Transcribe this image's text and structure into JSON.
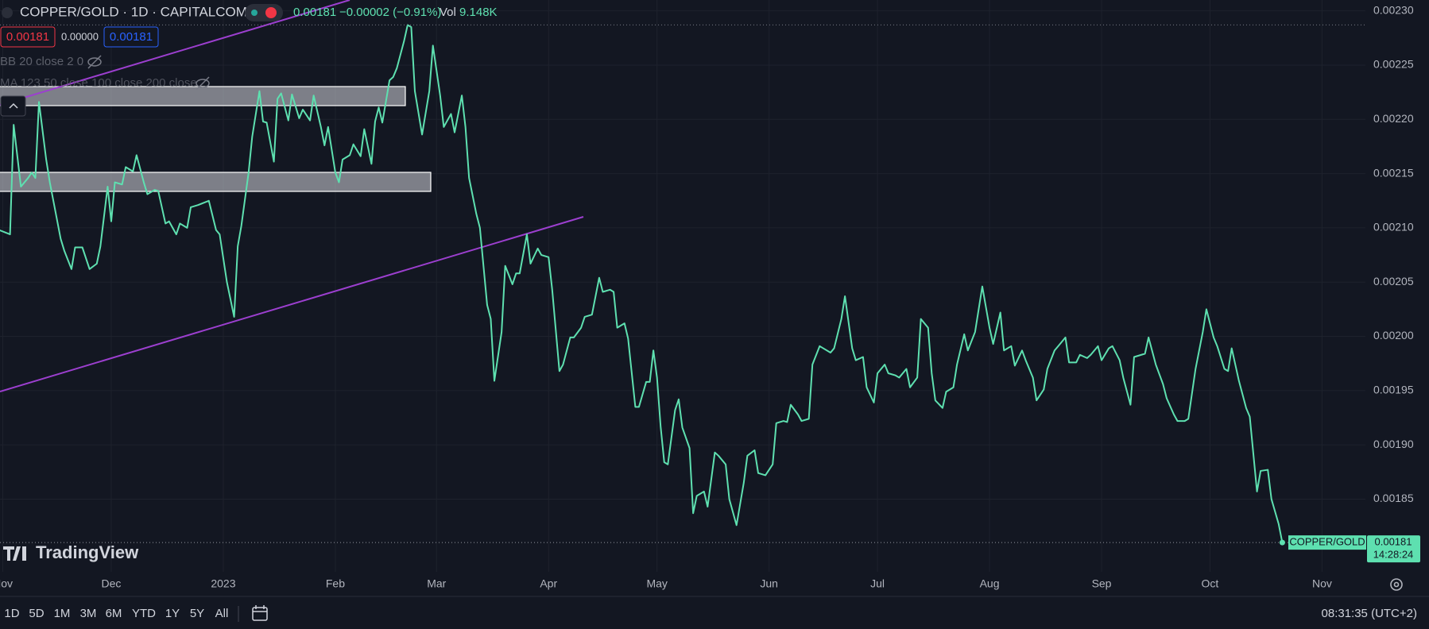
{
  "header": {
    "symbol": "COPPER/GOLD · 1D · CAPITALCOM",
    "last": "0.00181",
    "change": "−0.00002 (−0.91%)",
    "vol_label": "Vol",
    "vol": "9.148K",
    "bid": "0.00181",
    "spread": "0.00000",
    "ask": "0.00181",
    "indicator_1": "BB 20 close 2 0",
    "indicator_2": "MA 123 50 close 100 close 200 close"
  },
  "watermark": "TradingView",
  "chart_data": {
    "type": "line",
    "color": "#5ee0b0",
    "grid": true,
    "x": [
      -1,
      2,
      3,
      5,
      7,
      8,
      9,
      10,
      12,
      13,
      16,
      17,
      19,
      20,
      22,
      24,
      26,
      27,
      29,
      30,
      31,
      33,
      34,
      36,
      37,
      39,
      40,
      42,
      43,
      45,
      46,
      48,
      49,
      51,
      52,
      54,
      57,
      59,
      60,
      62,
      64,
      65,
      66,
      68,
      69,
      71,
      72,
      73,
      75,
      76,
      77,
      79,
      80,
      82,
      83,
      85,
      86,
      88,
      89,
      90,
      92,
      93,
      94,
      96,
      97,
      99,
      100,
      102,
      103,
      104,
      105,
      107,
      108,
      109,
      111,
      112,
      113,
      114,
      116,
      118,
      119,
      121,
      122,
      124,
      125,
      127,
      128,
      129,
      131,
      132,
      134,
      135,
      136,
      138,
      139,
      141,
      142,
      143,
      145,
      146,
      148,
      149,
      151,
      152,
      154,
      155,
      157,
      158,
      160,
      161,
      163,
      165,
      166,
      168,
      169,
      170,
      172,
      173,
      175,
      176,
      178,
      179,
      180,
      181,
      182,
      183,
      184,
      186,
      187,
      188,
      190,
      191,
      192,
      194,
      195,
      197,
      198,
      200,
      201,
      203,
      205,
      206,
      208,
      209,
      211,
      213,
      214,
      216,
      217,
      218,
      220,
      221,
      223,
      224,
      226,
      227,
      229,
      230,
      232,
      233,
      235,
      236,
      238,
      239,
      241,
      242,
      244,
      245,
      247,
      248,
      250,
      251,
      253,
      254,
      256,
      257,
      258,
      260,
      261,
      263,
      264,
      266,
      267,
      269,
      271,
      273,
      274,
      276,
      277,
      279,
      280,
      282,
      283,
      285,
      286,
      288,
      289,
      291,
      292,
      294,
      295,
      297,
      298,
      300,
      301,
      303,
      304,
      306,
      307,
      309,
      310,
      312,
      313,
      315,
      316,
      317,
      319,
      321,
      322,
      324,
      325,
      327,
      328,
      330,
      332,
      333,
      335,
      336,
      338,
      339,
      340,
      341,
      342,
      344,
      345,
      347,
      348,
      350,
      351,
      353,
      354
    ],
    "values": [
      0.002098,
      0.002094,
      0.002195,
      0.002138,
      0.002146,
      0.002151,
      0.002146,
      0.002216,
      0.002163,
      0.002142,
      0.00209,
      0.002079,
      0.002062,
      0.002082,
      0.002082,
      0.002062,
      0.002067,
      0.002083,
      0.002138,
      0.002106,
      0.002142,
      0.00214,
      0.002156,
      0.002152,
      0.002167,
      0.002142,
      0.002131,
      0.002135,
      0.002134,
      0.002104,
      0.002106,
      0.002094,
      0.002104,
      0.0021,
      0.002119,
      0.002121,
      0.002125,
      0.002098,
      0.002094,
      0.00205,
      0.002018,
      0.002083,
      0.002102,
      0.002151,
      0.002184,
      0.002226,
      0.002198,
      0.002197,
      0.002161,
      0.002219,
      0.002224,
      0.002199,
      0.002223,
      0.002201,
      0.002209,
      0.002199,
      0.002222,
      0.002193,
      0.002176,
      0.002193,
      0.002151,
      0.002142,
      0.002163,
      0.002167,
      0.002177,
      0.002166,
      0.002191,
      0.002159,
      0.002198,
      0.002211,
      0.002197,
      0.002236,
      0.002239,
      0.002247,
      0.002272,
      0.002287,
      0.002285,
      0.002226,
      0.002186,
      0.002226,
      0.002268,
      0.002222,
      0.002193,
      0.002205,
      0.002188,
      0.002222,
      0.002193,
      0.002146,
      0.002113,
      0.0021,
      0.002029,
      0.002016,
      0.001959,
      0.002004,
      0.002065,
      0.002048,
      0.002058,
      0.002058,
      0.002094,
      0.002067,
      0.002081,
      0.002075,
      0.002073,
      0.002043,
      0.001968,
      0.001974,
      0.001999,
      0.001999,
      0.002008,
      0.002018,
      0.00202,
      0.002054,
      0.002041,
      0.002043,
      0.002041,
      0.002008,
      0.002012,
      0.001998,
      0.001935,
      0.001935,
      0.001958,
      0.001958,
      0.001987,
      0.001962,
      0.001917,
      0.001884,
      0.001882,
      0.001932,
      0.001942,
      0.001916,
      0.001897,
      0.001837,
      0.001853,
      0.001857,
      0.001843,
      0.001893,
      0.00189,
      0.001882,
      0.00185,
      0.001826,
      0.001865,
      0.00189,
      0.001895,
      0.001874,
      0.001872,
      0.001882,
      0.00192,
      0.001922,
      0.001921,
      0.001937,
      0.001928,
      0.001922,
      0.001924,
      0.001974,
      0.001991,
      0.001989,
      0.001985,
      0.001989,
      0.002016,
      0.002037,
      0.001989,
      0.001978,
      0.001981,
      0.001953,
      0.001939,
      0.001966,
      0.001974,
      0.001966,
      0.001964,
      0.001962,
      0.00197,
      0.001953,
      0.001962,
      0.002016,
      0.002008,
      0.001966,
      0.001941,
      0.001934,
      0.001949,
      0.001953,
      0.001974,
      0.002002,
      0.001987,
      0.002004,
      0.002046,
      0.002008,
      0.001993,
      0.002022,
      0.001987,
      0.001991,
      0.001973,
      0.001987,
      0.001978,
      0.001962,
      0.001941,
      0.001951,
      0.00197,
      0.001987,
      0.001991,
      0.001999,
      0.001976,
      0.001976,
      0.001983,
      0.00198,
      0.001983,
      0.001991,
      0.001978,
      0.001989,
      0.001991,
      0.001978,
      0.001962,
      0.001937,
      0.001981,
      0.001983,
      0.001984,
      0.001999,
      0.001974,
      0.001956,
      0.001943,
      0.001928,
      0.001922,
      0.001922,
      0.001924,
      0.00197,
      0.002004,
      0.002025,
      0.001999,
      0.001991,
      0.00197,
      0.001968,
      0.001989,
      0.001974,
      0.001959,
      0.001934,
      0.001926,
      0.001857,
      0.001876,
      0.001877,
      0.00185,
      0.001827,
      0.00181
    ],
    "xlim": [
      -1,
      377
    ],
    "xticks": [
      {
        "value": 0,
        "label": "Nov"
      },
      {
        "value": 30,
        "label": "Dec"
      },
      {
        "value": 61,
        "label": "2023"
      },
      {
        "value": 92,
        "label": "Feb"
      },
      {
        "value": 120,
        "label": "Mar"
      },
      {
        "value": 151,
        "label": "Apr"
      },
      {
        "value": 181,
        "label": "May"
      },
      {
        "value": 212,
        "label": "Jun"
      },
      {
        "value": 242,
        "label": "Jul"
      },
      {
        "value": 273,
        "label": "Aug"
      },
      {
        "value": 304,
        "label": "Sep"
      },
      {
        "value": 334,
        "label": "Oct"
      },
      {
        "value": 365,
        "label": "Nov"
      }
    ],
    "ylim": [
      0.001783,
      0.00231
    ],
    "yticks": [
      0.00185,
      {
        "value": 0.0019,
        "label": "0.00190"
      },
      0.00195,
      {
        "value": 0.002,
        "label": "0.00200"
      },
      0.00205,
      {
        "value": 0.0021,
        "label": "0.00210"
      },
      0.00215,
      {
        "value": 0.0022,
        "label": "0.00220"
      },
      0.00225,
      {
        "value": 0.0023,
        "label": "0.00230"
      }
    ],
    "price_tag": {
      "name": "COPPER/GOLD",
      "price": "0.00181",
      "countdown": "14:28:24"
    }
  },
  "toolbar": {
    "ranges": [
      "1D",
      "5D",
      "1M",
      "3M",
      "6M",
      "YTD",
      "1Y",
      "5Y",
      "All"
    ],
    "clock": "08:31:35 (UTC+2)"
  }
}
